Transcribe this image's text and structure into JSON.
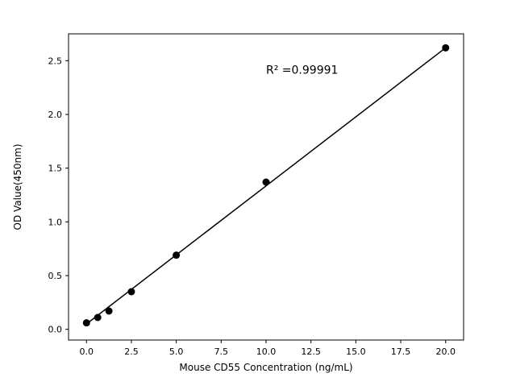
{
  "chart_data": {
    "type": "scatter",
    "title": "",
    "xlabel": "Mouse CD55 Concentration (ng/mL)",
    "ylabel": "OD Value(450nm)",
    "x": [
      0,
      0.625,
      1.25,
      2.5,
      5,
      10,
      20
    ],
    "y": [
      0.06,
      0.11,
      0.17,
      0.35,
      0.69,
      1.37,
      2.62
    ],
    "fit_line": {
      "x1": 0,
      "y1": 0.05,
      "x2": 20,
      "y2": 2.62
    },
    "annotation": {
      "text": "R² =0.99991",
      "x": 10,
      "y": 2.38
    },
    "xticks": [
      0.0,
      2.5,
      5.0,
      7.5,
      10.0,
      12.5,
      15.0,
      17.5,
      20.0
    ],
    "xtick_labels": [
      "0.0",
      "2.5",
      "5.0",
      "7.5",
      "10.0",
      "12.5",
      "15.0",
      "17.5",
      "20.0"
    ],
    "yticks": [
      0.0,
      0.5,
      1.0,
      1.5,
      2.0,
      2.5
    ],
    "ytick_labels": [
      "0.0",
      "0.5",
      "1.0",
      "1.5",
      "2.0",
      "2.5"
    ],
    "xlim": [
      -1,
      21
    ],
    "ylim": [
      -0.1,
      2.75
    ],
    "grid": false,
    "legend": "none",
    "marker_color": "#000000",
    "line_color": "#000000",
    "axis_color": "#000000",
    "background": "#ffffff"
  }
}
